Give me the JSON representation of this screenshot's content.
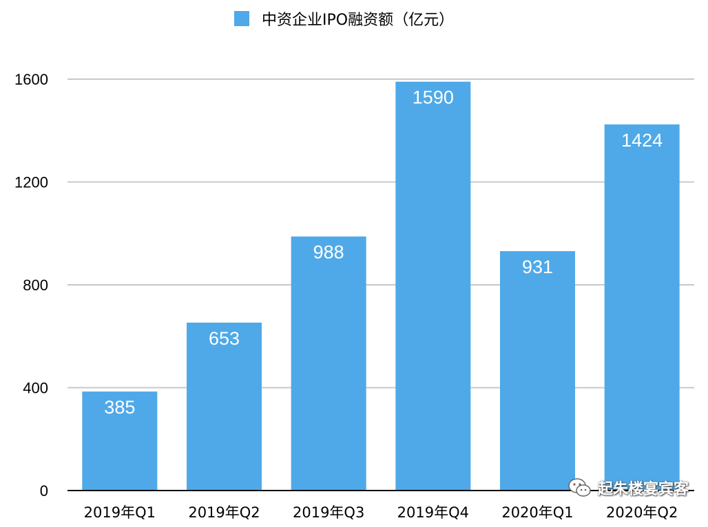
{
  "chart_data": {
    "type": "bar",
    "categories": [
      "2019年Q1",
      "2019年Q2",
      "2019年Q3",
      "2019年Q4",
      "2020年Q1",
      "2020年Q2"
    ],
    "series": [
      {
        "name": "中资企业IPO融资额（亿元）",
        "values": [
          385,
          653,
          988,
          1590,
          931,
          1424
        ]
      }
    ],
    "title": "",
    "xlabel": "",
    "ylabel": "",
    "ylim": [
      0,
      1600
    ],
    "yticks": [
      0,
      400,
      800,
      1200,
      1600
    ],
    "grid": true,
    "legend_position": "top-center",
    "data_labels": true,
    "colors": {
      "bar": "#4fa9e8",
      "grid": "#c8c8c8",
      "axis": "#000000",
      "data_label": "#ffffff"
    }
  },
  "watermark": {
    "text": "起朱楼宴宾客",
    "icon": "wechat-icon"
  }
}
